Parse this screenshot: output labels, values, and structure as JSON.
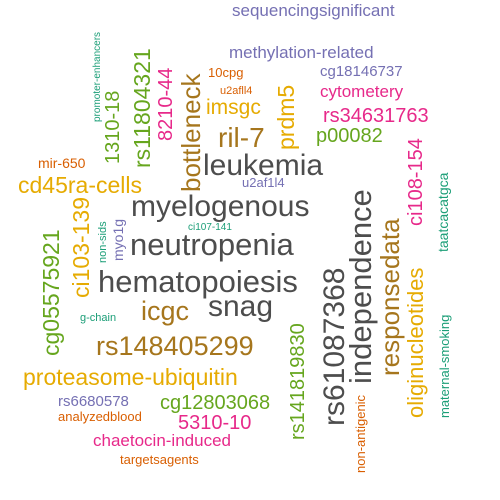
{
  "colors": {
    "gray": "#4d4d4d",
    "green": "#66a61e",
    "orange": "#e6ab02",
    "brown": "#a6761d",
    "purple": "#7570b3",
    "magenta": "#e7298a",
    "rust": "#d95f02",
    "teal": "#1b9e77"
  },
  "words": [
    {
      "text": "sequencingsignificant",
      "color": "purple"
    },
    {
      "text": "methylation-related",
      "color": "purple"
    },
    {
      "text": "cg18146737",
      "color": "purple"
    },
    {
      "text": "cytometery",
      "color": "magenta"
    },
    {
      "text": "10cpg",
      "color": "rust"
    },
    {
      "text": "u2afll4",
      "color": "rust"
    },
    {
      "text": "imsgc",
      "color": "orange"
    },
    {
      "text": "ril-7",
      "color": "brown"
    },
    {
      "text": "leukemia",
      "color": "gray"
    },
    {
      "text": "p00082",
      "color": "green"
    },
    {
      "text": "rs34631763",
      "color": "magenta"
    },
    {
      "text": "u2af1l4",
      "color": "purple"
    },
    {
      "text": "cd45ra-cells",
      "color": "orange"
    },
    {
      "text": "mir-650",
      "color": "rust"
    },
    {
      "text": "myelogenous",
      "color": "gray"
    },
    {
      "text": "ci107-141",
      "color": "teal"
    },
    {
      "text": "neutropenia",
      "color": "gray"
    },
    {
      "text": "hematopoiesis",
      "color": "gray"
    },
    {
      "text": "snag",
      "color": "gray"
    },
    {
      "text": "icgc",
      "color": "brown"
    },
    {
      "text": "g-chain",
      "color": "teal"
    },
    {
      "text": "rs148405299",
      "color": "brown"
    },
    {
      "text": "proteasome-ubiquitin",
      "color": "orange"
    },
    {
      "text": "cg12803068",
      "color": "green"
    },
    {
      "text": "rs6680578",
      "color": "purple"
    },
    {
      "text": "analyzedblood",
      "color": "rust"
    },
    {
      "text": "5310-10",
      "color": "magenta"
    },
    {
      "text": "chaetocin-induced",
      "color": "magenta"
    },
    {
      "text": "targetsagents",
      "color": "rust"
    },
    {
      "text": "promoter-enhancers",
      "color": "teal"
    },
    {
      "text": "cg05575921",
      "color": "green"
    },
    {
      "text": "ci103-139",
      "color": "orange"
    },
    {
      "text": "non-sids",
      "color": "teal"
    },
    {
      "text": "myo1g",
      "color": "purple"
    },
    {
      "text": "1310-18",
      "color": "green"
    },
    {
      "text": "rs11804321",
      "color": "green"
    },
    {
      "text": "8210-44",
      "color": "magenta"
    },
    {
      "text": "bottleneck",
      "color": "brown"
    },
    {
      "text": "prdm5",
      "color": "orange"
    },
    {
      "text": "rs61087368",
      "color": "gray"
    },
    {
      "text": "independence",
      "color": "gray"
    },
    {
      "text": "rs141819830",
      "color": "green"
    },
    {
      "text": "non-antigenic",
      "color": "rust"
    },
    {
      "text": "responsedata",
      "color": "brown"
    },
    {
      "text": "ci108-154",
      "color": "magenta"
    },
    {
      "text": "oliginucleotides",
      "color": "orange"
    },
    {
      "text": "maternal-smoking",
      "color": "teal"
    },
    {
      "text": "taatcacatgca",
      "color": "teal"
    }
  ]
}
